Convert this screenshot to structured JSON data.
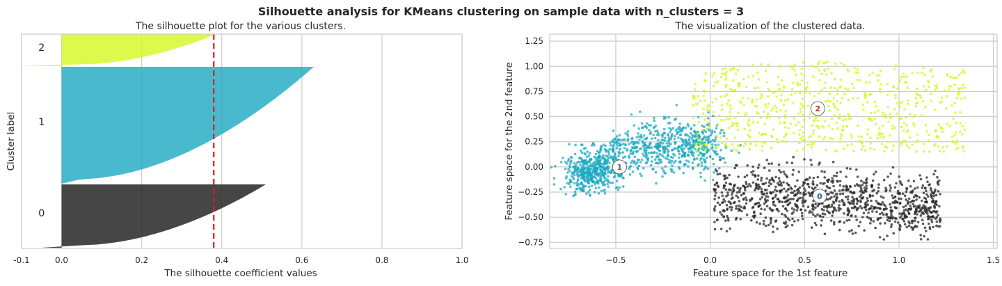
{
  "figure_title": "Silhouette analysis for KMeans clustering on sample data with n_clusters = 3",
  "colors": {
    "cluster_0": "#262626",
    "cluster_1": "#1ba9c0",
    "cluster_2": "#d4f71f",
    "average_line": "#e31a1c",
    "grid": "#cccccc"
  },
  "chart_data": [
    {
      "type": "area",
      "title": "The silhouette plot for the various clusters.",
      "xlabel": "The silhouette coefficient values",
      "ylabel": "Cluster label",
      "xlim": [
        -0.1,
        1.0
      ],
      "xticks": [
        "-0.1",
        "0.0",
        "0.2",
        "0.4",
        "0.6",
        "0.8",
        "1.0"
      ],
      "average_silhouette_score": 0.38,
      "grid": true,
      "clusters": [
        {
          "label": "0",
          "max_coefficient": 0.51,
          "min_coefficient": -0.05,
          "color": "#262626"
        },
        {
          "label": "1",
          "max_coefficient": 0.63,
          "min_coefficient": 0.0,
          "color": "#1ba9c0"
        },
        {
          "label": "2",
          "max_coefficient": 0.46,
          "min_coefficient": -0.11,
          "color": "#d4f71f"
        }
      ]
    },
    {
      "type": "scatter",
      "title": "The visualization of the clustered data.",
      "xlabel": "Feature space for the 1st feature",
      "ylabel": "Feature space for the 2nd feature",
      "xlim": [
        -0.85,
        1.52
      ],
      "ylim": [
        -0.81,
        1.32
      ],
      "xticks": [
        "−0.5",
        "0.0",
        "0.5",
        "1.0",
        "1.5"
      ],
      "yticks": [
        "1.25",
        "1.00",
        "0.75",
        "0.50",
        "0.25",
        "0.00",
        "−0.25",
        "−0.50",
        "−0.75"
      ],
      "grid": true,
      "centers": [
        {
          "label": "0",
          "x": 0.58,
          "y": -0.29,
          "color": "#262626"
        },
        {
          "label": "1",
          "x": -0.48,
          "y": 0.0,
          "color": "#1ba9c0"
        },
        {
          "label": "2",
          "x": 0.57,
          "y": 0.58,
          "color": "#d4f71f"
        }
      ],
      "clusters": [
        {
          "label": "0",
          "center": [
            0.58,
            -0.29
          ],
          "x_range": [
            0.0,
            1.23
          ],
          "y_range": [
            -0.72,
            0.18
          ],
          "color": "#262626"
        },
        {
          "label": "1",
          "center": [
            -0.48,
            0.0
          ],
          "x_range": [
            -0.75,
            0.05
          ],
          "y_range": [
            -0.3,
            0.74
          ],
          "color": "#1ba9c0"
        },
        {
          "label": "2",
          "center": [
            0.57,
            0.58
          ],
          "x_range": [
            -0.1,
            1.4
          ],
          "y_range": [
            0.15,
            1.22
          ],
          "color": "#d4f71f"
        }
      ]
    }
  ]
}
